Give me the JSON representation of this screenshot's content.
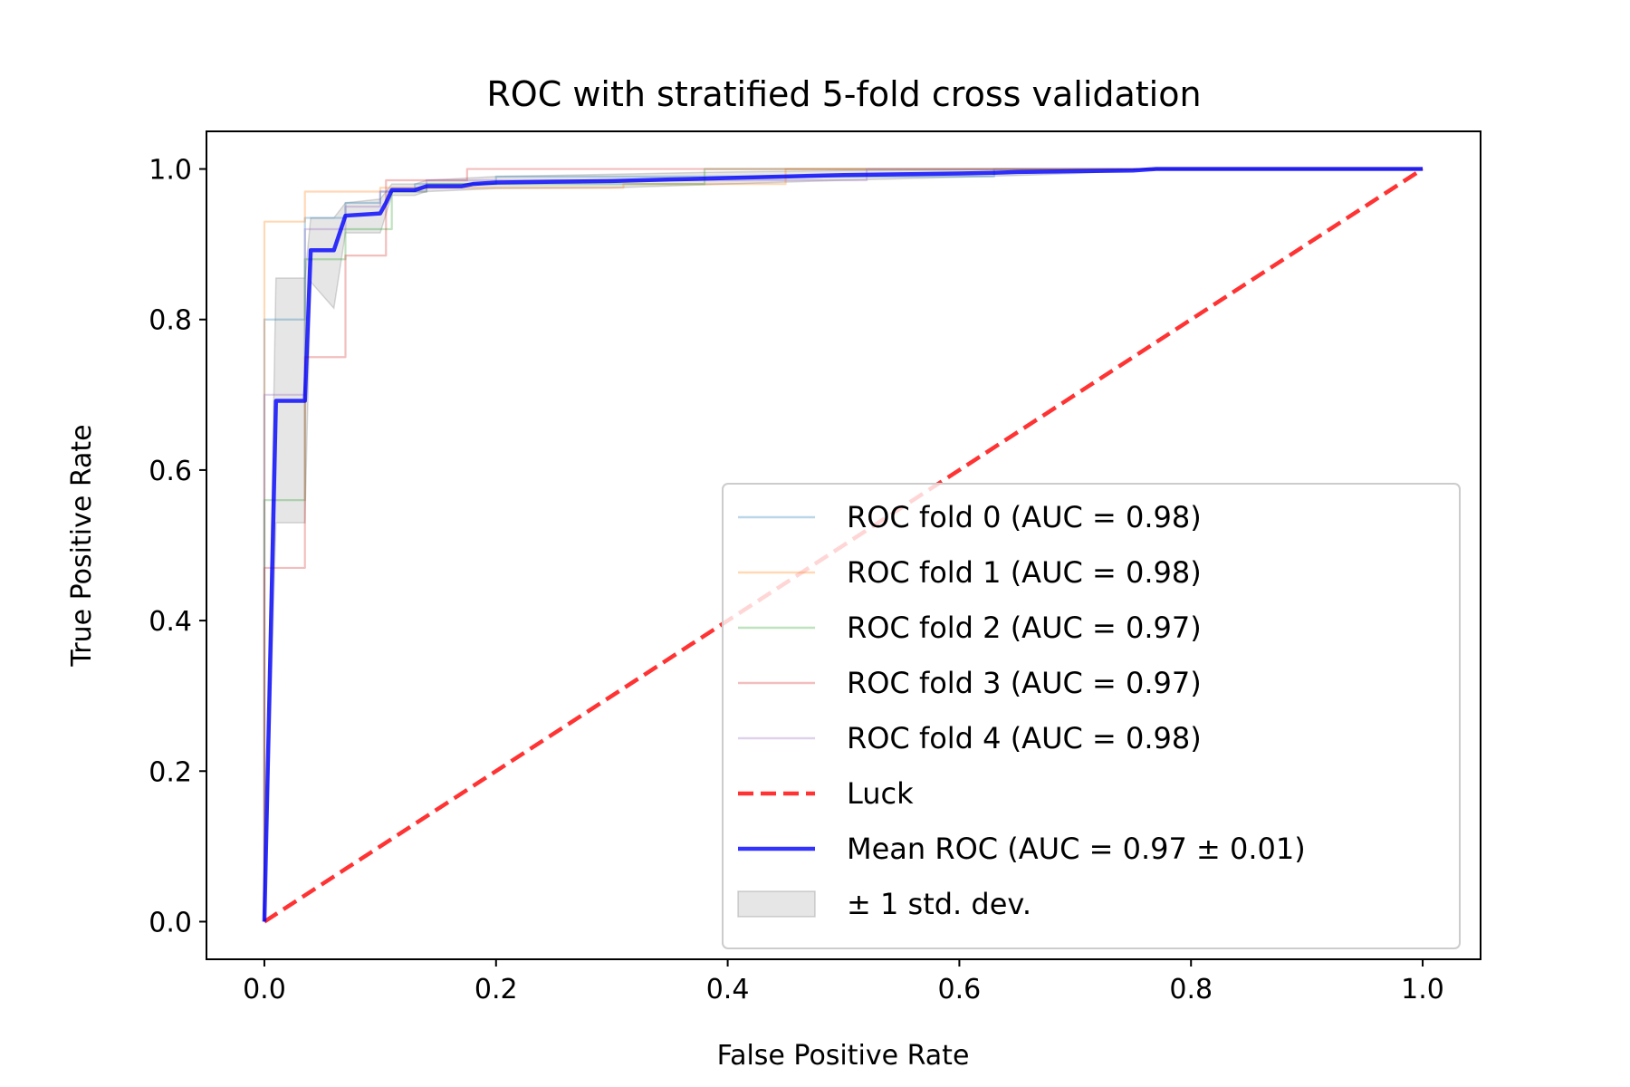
{
  "chart_data": {
    "type": "line",
    "title": "ROC with stratified 5-fold cross validation",
    "xlabel": "False Positive Rate",
    "ylabel": "True Positive Rate",
    "xlim": [
      -0.05,
      1.05
    ],
    "ylim": [
      -0.05,
      1.05
    ],
    "xticks": [
      "0.0",
      "0.2",
      "0.4",
      "0.6",
      "0.8",
      "1.0"
    ],
    "yticks": [
      "0.0",
      "0.2",
      "0.4",
      "0.6",
      "0.8",
      "1.0"
    ],
    "grid": false,
    "legend_position": "lower-right",
    "series": [
      {
        "name": "ROC fold 0 (AUC = 0.98)",
        "color": "#1f77b4",
        "opacity": 0.3,
        "style": "step",
        "x": [
          0.0,
          0.0,
          0.0,
          0.035,
          0.035,
          0.07,
          0.07,
          0.1,
          0.1,
          0.13,
          0.13,
          0.2,
          0.2,
          0.63,
          0.63,
          1.0
        ],
        "y": [
          0.0,
          0.8,
          0.8,
          0.8,
          0.935,
          0.935,
          0.955,
          0.955,
          0.97,
          0.97,
          0.98,
          0.98,
          0.99,
          0.99,
          1.0,
          1.0
        ]
      },
      {
        "name": "ROC fold 1 (AUC = 0.98)",
        "color": "#ff7f0e",
        "opacity": 0.3,
        "style": "step",
        "x": [
          0.0,
          0.0,
          0.035,
          0.035,
          0.1,
          0.1,
          0.31,
          0.31,
          0.45,
          0.45,
          1.0
        ],
        "y": [
          0.0,
          0.93,
          0.93,
          0.97,
          0.97,
          0.975,
          0.975,
          0.98,
          0.98,
          1.0,
          1.0
        ]
      },
      {
        "name": "ROC fold 2 (AUC = 0.97)",
        "color": "#2ca02c",
        "opacity": 0.3,
        "style": "step",
        "x": [
          0.0,
          0.0,
          0.035,
          0.035,
          0.07,
          0.07,
          0.11,
          0.11,
          0.14,
          0.14,
          0.38,
          0.38,
          1.0
        ],
        "y": [
          0.0,
          0.56,
          0.56,
          0.88,
          0.88,
          0.92,
          0.92,
          0.97,
          0.97,
          0.98,
          0.98,
          1.0,
          1.0
        ]
      },
      {
        "name": "ROC fold 3 (AUC = 0.97)",
        "color": "#d62728",
        "opacity": 0.3,
        "style": "step",
        "x": [
          0.0,
          0.0,
          0.035,
          0.035,
          0.07,
          0.07,
          0.105,
          0.105,
          0.175,
          0.175,
          1.0
        ],
        "y": [
          0.0,
          0.47,
          0.47,
          0.75,
          0.75,
          0.885,
          0.885,
          0.985,
          0.985,
          1.0,
          1.0
        ]
      },
      {
        "name": "ROC fold 4 (AUC = 0.98)",
        "color": "#9467bd",
        "opacity": 0.3,
        "style": "step",
        "x": [
          0.0,
          0.0,
          0.035,
          0.035,
          0.07,
          0.07,
          0.1,
          0.1,
          0.14,
          0.14,
          0.52,
          0.52,
          1.0
        ],
        "y": [
          0.0,
          0.7,
          0.7,
          0.92,
          0.92,
          0.95,
          0.95,
          0.97,
          0.97,
          0.985,
          0.985,
          1.0,
          1.0
        ]
      },
      {
        "name": "Luck",
        "color": "#ff0000",
        "opacity": 0.8,
        "style": "dashed",
        "x": [
          0.0,
          1.0
        ],
        "y": [
          0.0,
          1.0
        ]
      },
      {
        "name": "Mean ROC (AUC = 0.97 ± 0.01)",
        "color": "#0000ff",
        "opacity": 0.8,
        "style": "solid",
        "x": [
          0.0,
          0.01,
          0.035,
          0.04,
          0.06,
          0.07,
          0.1,
          0.105,
          0.11,
          0.13,
          0.14,
          0.17,
          0.18,
          0.2,
          0.25,
          0.3,
          0.35,
          0.4,
          0.45,
          0.5,
          0.55,
          0.6,
          0.63,
          0.65,
          0.7,
          0.75,
          0.77,
          0.8,
          0.9,
          1.0
        ],
        "y": [
          0.0,
          0.692,
          0.692,
          0.892,
          0.892,
          0.938,
          0.941,
          0.955,
          0.972,
          0.972,
          0.977,
          0.977,
          0.98,
          0.982,
          0.983,
          0.984,
          0.986,
          0.988,
          0.99,
          0.992,
          0.993,
          0.994,
          0.995,
          0.996,
          0.997,
          0.998,
          1.0,
          1.0,
          1.0,
          1.0
        ]
      }
    ],
    "std_band": {
      "name": "± 1 std. dev.",
      "color": "#808080",
      "opacity": 0.2,
      "x": [
        0.0,
        0.01,
        0.035,
        0.04,
        0.06,
        0.07,
        0.1,
        0.11,
        0.13,
        0.14,
        0.2,
        0.3,
        0.4,
        0.5,
        0.6,
        0.7,
        0.77,
        0.8,
        1.0
      ],
      "upper": [
        0.0,
        0.855,
        0.855,
        0.935,
        0.935,
        0.955,
        0.96,
        0.98,
        0.98,
        0.985,
        0.99,
        0.993,
        0.996,
        0.998,
        0.999,
        1.0,
        1.0,
        1.0,
        1.0
      ],
      "lower": [
        0.0,
        0.53,
        0.53,
        0.85,
        0.815,
        0.915,
        0.915,
        0.965,
        0.965,
        0.97,
        0.974,
        0.975,
        0.98,
        0.985,
        0.989,
        0.994,
        1.0,
        1.0,
        1.0
      ]
    }
  }
}
